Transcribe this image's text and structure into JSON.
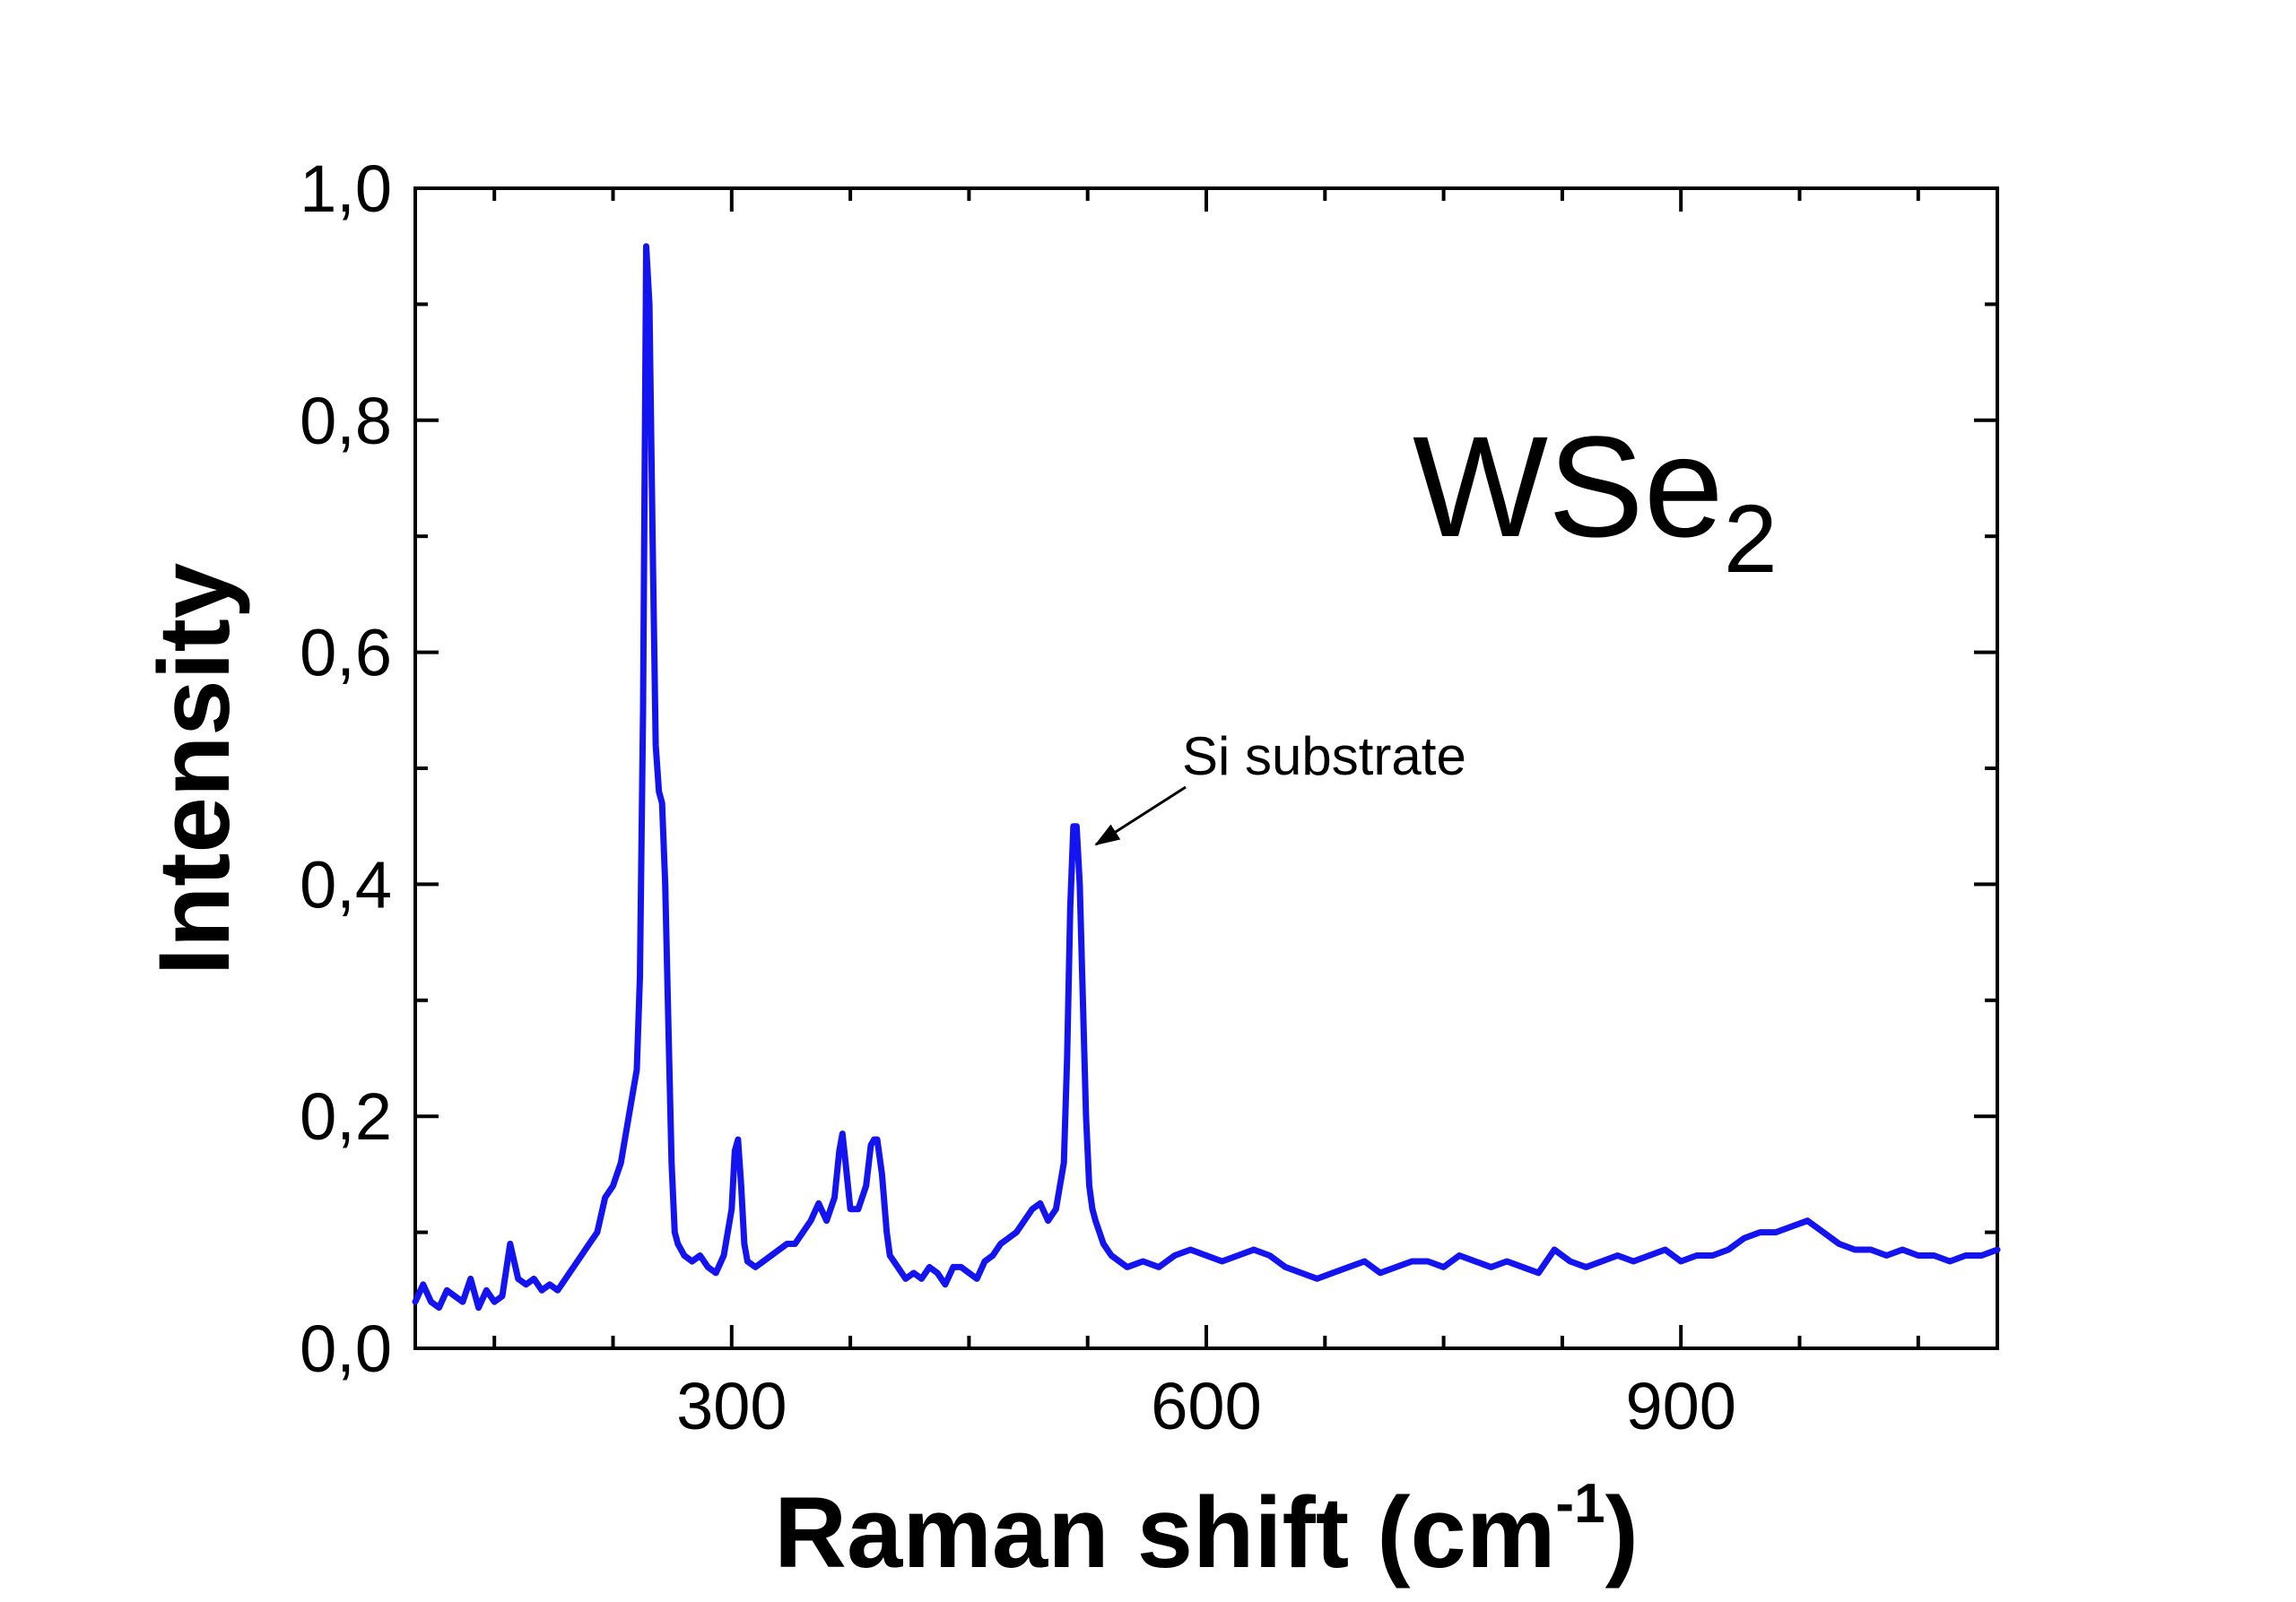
{
  "chart_data": {
    "type": "line",
    "xlabel": "Raman shift (cm",
    "xlabel_sup": "-1",
    "xlabel_close": ")",
    "ylabel": "Intensity",
    "xlim": [
      100,
      1100
    ],
    "ylim": [
      0.0,
      1.0
    ],
    "x_ticks": [
      {
        "value": 300,
        "label": "300"
      },
      {
        "value": 600,
        "label": "600"
      },
      {
        "value": 900,
        "label": "900"
      }
    ],
    "y_ticks": [
      {
        "value": 0.0,
        "label": "0,0"
      },
      {
        "value": 0.2,
        "label": "0,2"
      },
      {
        "value": 0.4,
        "label": "0,4"
      },
      {
        "value": 0.6,
        "label": "0,6"
      },
      {
        "value": 0.8,
        "label": "0,8"
      },
      {
        "value": 1.0,
        "label": "1,0"
      }
    ],
    "grid": false,
    "line_color": "#1414f0",
    "series": [
      {
        "x": [
          100,
          105,
          110,
          115,
          120,
          125,
          130,
          135,
          140,
          145,
          150,
          155,
          160,
          165,
          170,
          175,
          180,
          185,
          190,
          195,
          200,
          205,
          210,
          215,
          220,
          225,
          230,
          235,
          240,
          242,
          244,
          246,
          248,
          250,
          252,
          254,
          256,
          258,
          260,
          262,
          264,
          266,
          268,
          270,
          275,
          280,
          285,
          290,
          295,
          300,
          302,
          304,
          306,
          308,
          310,
          315,
          320,
          325,
          330,
          335,
          340,
          345,
          350,
          355,
          360,
          365,
          368,
          370,
          372,
          375,
          380,
          385,
          388,
          390,
          392,
          395,
          398,
          400,
          405,
          410,
          415,
          420,
          425,
          430,
          435,
          440,
          445,
          450,
          455,
          460,
          465,
          470,
          475,
          480,
          485,
          490,
          495,
          500,
          505,
          510,
          512,
          514,
          516,
          518,
          520,
          522,
          524,
          526,
          528,
          530,
          535,
          540,
          545,
          550,
          560,
          570,
          580,
          590,
          600,
          610,
          620,
          630,
          640,
          650,
          660,
          670,
          680,
          690,
          700,
          710,
          720,
          730,
          740,
          750,
          760,
          770,
          780,
          790,
          800,
          810,
          820,
          830,
          840,
          850,
          860,
          870,
          880,
          890,
          900,
          910,
          920,
          930,
          940,
          950,
          960,
          970,
          980,
          990,
          1000,
          1010,
          1020,
          1030,
          1040,
          1050,
          1060,
          1070,
          1080,
          1090,
          1100
        ],
        "y": [
          0.04,
          0.055,
          0.04,
          0.035,
          0.05,
          0.045,
          0.04,
          0.06,
          0.035,
          0.05,
          0.04,
          0.045,
          0.09,
          0.06,
          0.055,
          0.06,
          0.05,
          0.055,
          0.05,
          0.06,
          0.07,
          0.08,
          0.09,
          0.1,
          0.13,
          0.14,
          0.16,
          0.2,
          0.24,
          0.32,
          0.55,
          0.95,
          0.9,
          0.7,
          0.52,
          0.48,
          0.47,
          0.4,
          0.28,
          0.16,
          0.1,
          0.09,
          0.085,
          0.08,
          0.075,
          0.08,
          0.07,
          0.065,
          0.08,
          0.12,
          0.17,
          0.18,
          0.14,
          0.09,
          0.075,
          0.07,
          0.075,
          0.08,
          0.085,
          0.09,
          0.09,
          0.1,
          0.11,
          0.125,
          0.11,
          0.13,
          0.17,
          0.185,
          0.16,
          0.12,
          0.12,
          0.14,
          0.175,
          0.18,
          0.18,
          0.15,
          0.1,
          0.08,
          0.07,
          0.06,
          0.065,
          0.06,
          0.07,
          0.065,
          0.055,
          0.07,
          0.07,
          0.065,
          0.06,
          0.075,
          0.08,
          0.09,
          0.095,
          0.1,
          0.11,
          0.12,
          0.125,
          0.11,
          0.12,
          0.16,
          0.25,
          0.38,
          0.45,
          0.45,
          0.4,
          0.3,
          0.2,
          0.14,
          0.12,
          0.11,
          0.09,
          0.08,
          0.075,
          0.07,
          0.075,
          0.07,
          0.08,
          0.085,
          0.08,
          0.075,
          0.08,
          0.085,
          0.08,
          0.07,
          0.065,
          0.06,
          0.065,
          0.07,
          0.075,
          0.065,
          0.07,
          0.075,
          0.075,
          0.07,
          0.08,
          0.075,
          0.07,
          0.075,
          0.07,
          0.065,
          0.085,
          0.075,
          0.07,
          0.075,
          0.08,
          0.075,
          0.08,
          0.085,
          0.075,
          0.08,
          0.08,
          0.085,
          0.095,
          0.1,
          0.1,
          0.105,
          0.11,
          0.1,
          0.09,
          0.085,
          0.085,
          0.08,
          0.085,
          0.08,
          0.08,
          0.075,
          0.08,
          0.08,
          0.085
        ]
      }
    ],
    "annotations": [
      {
        "text": "Si substrate",
        "x": 520,
        "y": 0.44
      },
      {
        "text": "WSe",
        "sub": "2"
      }
    ]
  }
}
